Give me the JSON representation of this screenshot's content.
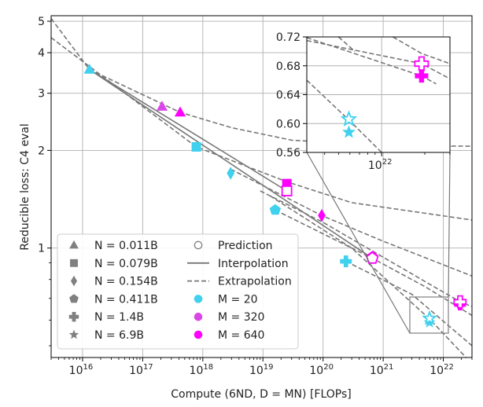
{
  "chart_data": {
    "type": "scatter",
    "title": "",
    "xlabel": "Compute (6ND, D = MN) [FLOPs]",
    "ylabel": "Reducible loss: C4 eval",
    "xscale": "log",
    "yscale": "log",
    "xlim": [
      3000000000000000.0,
      3e+22
    ],
    "ylim": [
      0.46,
      5.2
    ],
    "grid": true,
    "x_ticks": [
      {
        "base": "10",
        "exp": "16",
        "value": 1e+16
      },
      {
        "base": "10",
        "exp": "17",
        "value": 1e+17
      },
      {
        "base": "10",
        "exp": "18",
        "value": 1e+18
      },
      {
        "base": "10",
        "exp": "19",
        "value": 1e+19
      },
      {
        "base": "10",
        "exp": "20",
        "value": 1e+20
      },
      {
        "base": "10",
        "exp": "21",
        "value": 1e+21
      },
      {
        "base": "10",
        "exp": "22",
        "value": 1e+22
      }
    ],
    "y_ticks": [
      {
        "label": "1",
        "value": 1
      },
      {
        "label": "2",
        "value": 2
      },
      {
        "label": "3",
        "value": 3
      },
      {
        "label": "4",
        "value": 4
      },
      {
        "label": "5",
        "value": 5
      }
    ],
    "colors": {
      "M20": "#3fd1ee",
      "M320": "#d948e6",
      "M640": "#ff00ff",
      "line": "#777777",
      "legend_marker": "#808080"
    },
    "legend": {
      "placement": "lower-left",
      "model_sizes": [
        {
          "text": "N = 0.011B",
          "marker": "triangle"
        },
        {
          "text": "N = 0.079B",
          "marker": "square"
        },
        {
          "text": "N = 0.154B",
          "marker": "diamond"
        },
        {
          "text": "N = 0.411B",
          "marker": "pentagon"
        },
        {
          "text": "N = 1.4B",
          "marker": "plus"
        },
        {
          "text": "N = 6.9B",
          "marker": "star"
        }
      ],
      "styles": [
        {
          "text": "Prediction",
          "kind": "hollow"
        },
        {
          "text": "Interpolation",
          "kind": "solid"
        },
        {
          "text": "Extrapolation",
          "kind": "dashed"
        },
        {
          "text": "M = 20",
          "kind": "dot",
          "color": "#3fd1ee"
        },
        {
          "text": "M = 320",
          "kind": "dot",
          "color": "#d948e6"
        },
        {
          "text": "M = 640",
          "kind": "dot",
          "color": "#ff00ff"
        }
      ]
    },
    "series": [
      {
        "name": "M = 20 measured",
        "color": "#3fd1ee",
        "points": [
          {
            "x": 1.3e+16,
            "y": 3.55,
            "marker": "triangle"
          },
          {
            "x": 7.8e+17,
            "y": 2.05,
            "marker": "square"
          },
          {
            "x": 2.9e+18,
            "y": 1.7,
            "marker": "diamond"
          },
          {
            "x": 1.6e+19,
            "y": 1.31,
            "marker": "pentagon"
          },
          {
            "x": 2.4e+20,
            "y": 0.91,
            "marker": "plus"
          },
          {
            "x": 5.9e+21,
            "y": 0.59,
            "marker": "star"
          }
        ]
      },
      {
        "name": "M = 320 measured",
        "color": "#d948e6",
        "points": [
          {
            "x": 2.1e+17,
            "y": 2.73,
            "marker": "triangle"
          }
        ]
      },
      {
        "name": "M = 640 measured",
        "color": "#ff00ff",
        "points": [
          {
            "x": 4.2e+17,
            "y": 2.62,
            "marker": "triangle"
          },
          {
            "x": 2.5e+19,
            "y": 1.58,
            "marker": "square"
          },
          {
            "x": 9.5e+19,
            "y": 1.26,
            "marker": "diamond"
          },
          {
            "x": 6.6e+20,
            "y": 0.94,
            "marker": "pentagon"
          },
          {
            "x": 1.9e+22,
            "y": 0.67,
            "marker": "plus"
          }
        ]
      },
      {
        "name": "M = 640 predicted",
        "color": "#ff00ff",
        "hollow": true,
        "points": [
          {
            "x": 2.5e+19,
            "y": 1.5,
            "marker": "square"
          },
          {
            "x": 6.6e+20,
            "y": 0.93,
            "marker": "pentagon"
          },
          {
            "x": 1.9e+22,
            "y": 0.683,
            "marker": "plus"
          }
        ]
      },
      {
        "name": "M = 20 predicted",
        "color": "#3fd1ee",
        "hollow": true,
        "points": [
          {
            "x": 5.9e+21,
            "y": 0.607,
            "marker": "star"
          }
        ]
      }
    ],
    "lines": [
      {
        "style": "solid",
        "points": [
          [
            1.3e+16,
            3.55
          ],
          [
            2.5e+19,
            1.5
          ]
        ]
      },
      {
        "style": "solid",
        "points": [
          [
            1.3e+16,
            3.55
          ],
          [
            6.6e+20,
            0.93
          ]
        ]
      },
      {
        "style": "dashed",
        "points": [
          [
            3000000000000000.0,
            5.1
          ],
          [
            1.3e+16,
            3.55
          ],
          [
            4.2e+17,
            2.62
          ],
          [
            3e+18,
            2.35
          ],
          [
            3e+19,
            2.15
          ],
          [
            1e+21,
            2.07
          ],
          [
            3e+22,
            2.06
          ]
        ]
      },
      {
        "style": "dashed",
        "points": [
          [
            3000000000000000.0,
            4.45
          ],
          [
            7.8e+17,
            2.05
          ],
          [
            2.5e+19,
            1.6
          ],
          [
            3e+20,
            1.38
          ],
          [
            3e+22,
            1.22
          ]
        ]
      },
      {
        "style": "dashed",
        "points": [
          [
            2.9e+18,
            1.75
          ],
          [
            9.5e+19,
            1.26
          ],
          [
            1e+21,
            1.05
          ],
          [
            3e+22,
            0.82
          ]
        ]
      },
      {
        "style": "dashed",
        "points": [
          [
            1.6e+19,
            1.31
          ],
          [
            6.6e+20,
            0.93
          ],
          [
            5e+21,
            0.76
          ],
          [
            3e+22,
            0.62
          ]
        ]
      },
      {
        "style": "dashed",
        "points": [
          [
            2.4e+20,
            0.91
          ],
          [
            3e+21,
            0.72
          ],
          [
            3e+22,
            0.5
          ]
        ]
      },
      {
        "style": "dashed",
        "points": [
          [
            1.3e+19,
            1.45
          ],
          [
            3e+20,
            1.0
          ],
          [
            5.9e+21,
            0.605
          ],
          [
            3e+22,
            0.44
          ]
        ]
      },
      {
        "style": "dashed",
        "points": [
          [
            9e+18,
            1.5
          ],
          [
            1e+20,
            1.2
          ],
          [
            1.9e+22,
            0.683
          ],
          [
            3e+22,
            0.66
          ]
        ]
      }
    ],
    "inset": {
      "xlim": [
        3e+21,
        3e+22
      ],
      "ylim": [
        0.56,
        0.72
      ],
      "y_ticks": [
        {
          "label": "0.72",
          "value": 0.72
        },
        {
          "label": "0.68",
          "value": 0.68
        },
        {
          "label": "0.64",
          "value": 0.64
        },
        {
          "label": "0.60",
          "value": 0.6
        },
        {
          "label": "0.56",
          "value": 0.56
        }
      ],
      "x_ticks": [
        {
          "base": "10",
          "exp": "22",
          "value": 1e+22
        }
      ],
      "lines": [
        {
          "style": "dashed",
          "points": [
            [
              3e+21,
              0.715
            ],
            [
              1.9e+22,
              0.683
            ],
            [
              3e+22,
              0.662
            ]
          ]
        },
        {
          "style": "dashed",
          "points": [
            [
              3e+21,
              0.719
            ],
            [
              1.9e+22,
              0.666
            ],
            [
              2.4e+22,
              0.655
            ]
          ]
        },
        {
          "style": "dashed",
          "points": [
            [
              1.2e+22,
              0.72
            ],
            [
              1.9e+22,
              0.697
            ],
            [
              3e+22,
              0.683
            ]
          ]
        },
        {
          "style": "dashed",
          "points": [
            [
              3e+21,
              0.66
            ],
            [
              5.9e+21,
              0.605
            ],
            [
              1e+22,
              0.56
            ]
          ]
        },
        {
          "style": "dashed",
          "points": [
            [
              5e+21,
              0.72
            ],
            [
              6.5e+21,
              0.7
            ]
          ]
        }
      ],
      "points": [
        {
          "x": 1.9e+22,
          "y": 0.683,
          "marker": "plus",
          "color": "#ff00ff",
          "hollow": true
        },
        {
          "x": 1.9e+22,
          "y": 0.666,
          "marker": "plus",
          "color": "#ff00ff"
        },
        {
          "x": 5.9e+21,
          "y": 0.606,
          "marker": "star",
          "color": "#3fd1ee",
          "hollow": true
        },
        {
          "x": 5.9e+21,
          "y": 0.588,
          "marker": "star",
          "color": "#3fd1ee"
        }
      ]
    }
  }
}
